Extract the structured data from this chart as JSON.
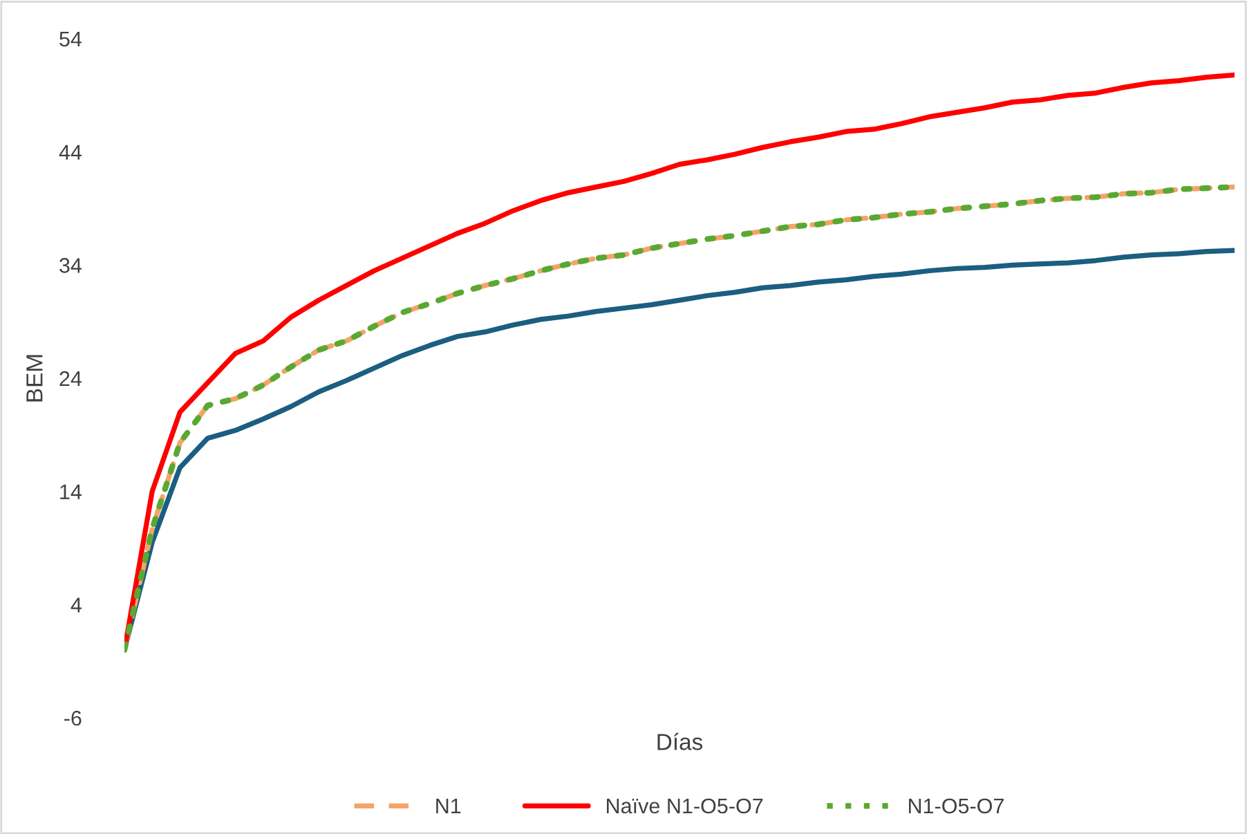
{
  "chart_data": {
    "type": "line",
    "xlabel": "Días",
    "ylabel": "BEM",
    "categories": [
      null,
      null,
      null,
      null,
      null,
      null,
      null,
      null,
      null,
      null,
      null,
      null,
      null,
      null,
      null,
      null,
      null,
      null,
      null,
      null,
      null,
      null,
      null,
      null,
      null,
      null,
      null,
      null,
      null,
      null,
      null,
      null,
      null,
      null,
      null,
      null,
      null,
      null,
      null,
      null,
      null
    ],
    "series": [
      {
        "color": "#1b5e80",
        "line_style": "solid",
        "values": [
          0,
          9.5,
          16.1,
          18.7,
          19.4,
          20.4,
          21.5,
          22.8,
          23.8,
          24.9,
          26.0,
          26.9,
          27.7,
          28.1,
          28.7,
          29.2,
          29.5,
          29.9,
          30.2,
          30.5,
          30.9,
          31.3,
          31.6,
          32.0,
          32.2,
          32.5,
          32.7,
          33.0,
          33.2,
          33.5,
          33.7,
          33.8,
          34.0,
          34.1,
          34.2,
          34.4,
          34.7,
          34.9,
          35.0,
          35.2,
          35.3
        ]
      },
      {
        "name": "N1",
        "color": "#f4a46a",
        "line_style": "dashed",
        "values": [
          0,
          10.7,
          18.3,
          21.6,
          22.2,
          23.4,
          25.0,
          26.5,
          27.3,
          28.6,
          29.8,
          30.6,
          31.5,
          32.2,
          32.8,
          33.5,
          34.1,
          34.6,
          34.9,
          35.5,
          35.9,
          36.3,
          36.6,
          37.0,
          37.4,
          37.6,
          38.0,
          38.2,
          38.5,
          38.7,
          39.0,
          39.2,
          39.4,
          39.7,
          39.9,
          40.0,
          40.3,
          40.4,
          40.7,
          40.8,
          40.9
        ]
      },
      {
        "name": "Naïve N1-O5-O7",
        "color": "#ff0000",
        "line_style": "solid",
        "values": [
          0,
          14.0,
          21.0,
          23.6,
          26.2,
          27.3,
          29.4,
          30.9,
          32.2,
          33.5,
          34.6,
          35.7,
          36.8,
          37.7,
          38.8,
          39.7,
          40.4,
          40.9,
          41.4,
          42.1,
          42.9,
          43.3,
          43.8,
          44.4,
          44.9,
          45.3,
          45.8,
          46.0,
          46.5,
          47.1,
          47.5,
          47.9,
          48.4,
          48.6,
          49.0,
          49.2,
          49.7,
          50.1,
          50.3,
          50.6,
          50.8
        ]
      },
      {
        "name": "N1-O5-O7",
        "color": "#5aa832",
        "line_style": "dotted",
        "values": [
          0,
          10.7,
          18.3,
          21.6,
          22.2,
          23.4,
          25.0,
          26.5,
          27.3,
          28.6,
          29.8,
          30.6,
          31.5,
          32.2,
          32.8,
          33.5,
          34.1,
          34.6,
          34.9,
          35.5,
          35.9,
          36.3,
          36.6,
          37.0,
          37.4,
          37.6,
          38.0,
          38.2,
          38.5,
          38.7,
          39.0,
          39.2,
          39.4,
          39.7,
          39.9,
          40.0,
          40.3,
          40.4,
          40.7,
          40.8,
          40.9
        ]
      }
    ],
    "ylim": [
      -6,
      54
    ],
    "yticks": [
      -6,
      4,
      14,
      24,
      34,
      44,
      54
    ],
    "grid": false,
    "legend": "bottom",
    "tick_labels": "y",
    "marker": "none"
  }
}
